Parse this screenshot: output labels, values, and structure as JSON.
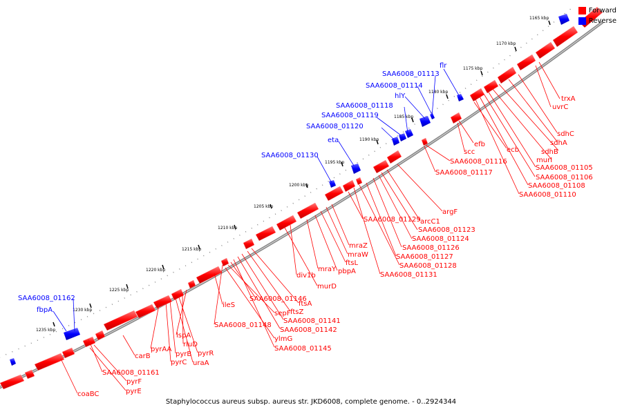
{
  "caption": "Staphylococcus aureus subsp. aureus str. JKD6008, complete genome. - 0..2924344",
  "legend": [
    {
      "label": "Forward",
      "color": "#ff0000"
    },
    {
      "label": "Reverse",
      "color": "#0000ff"
    }
  ],
  "colors": {
    "forward": "#ff0000",
    "reverse": "#0000ff",
    "backbone": "#777777"
  },
  "ticks": [
    "1165 kbp",
    "1170 kbp",
    "1175 kbp",
    "1180 kbp",
    "1185 kbp",
    "1190 kbp",
    "1195 kbp",
    "1200 kbp",
    "1205 kbp",
    "1210 kbp",
    "1215 kbp",
    "1220 kbp",
    "1225 kbp",
    "1230 kbp",
    "1235 kbp"
  ],
  "reverse_labels": [
    "flr",
    "SAA6008_01113",
    "SAA6008_01114",
    "hlY",
    "SAA6008_01118",
    "SAA6008_01119",
    "SAA6008_01120",
    "eta",
    "SAA6008_01130",
    "SAA6008_01162",
    "fbpA"
  ],
  "forward_labels": [
    "trxA",
    "uvrC",
    "sdhC",
    "sdhA",
    "sdhB",
    "murI",
    "SAA6008_01105",
    "SAA6008_01106",
    "SAA6008_01108",
    "SAA6008_01110",
    "ecb",
    "efb",
    "scc",
    "SAA6008_01116",
    "SAA6008_01117",
    "argF",
    "arcC1",
    "SAA6008_01123",
    "SAA6008_01124",
    "SAA6008_01126",
    "SAA6008_01127",
    "SAA6008_01128",
    "SAA6008_01131",
    "SAA6008_01129",
    "mraZ",
    "mraW",
    "ftsL",
    "pbpA",
    "mraY",
    "div1b",
    "murD",
    "ftsA",
    "ftsZ",
    "SAA6008_01141",
    "SAA6008_01142",
    "SAA6008_01145",
    "SAA6008_01146",
    "sepF",
    "ylmG",
    "SAA6008_01148",
    "ileS",
    "lspA",
    "rluD",
    "pyrR",
    "uraA",
    "pyrB",
    "pyrC",
    "pyrAA",
    "carB",
    "SAA6008_01161",
    "pyrF",
    "pyrE",
    "coaBC"
  ]
}
